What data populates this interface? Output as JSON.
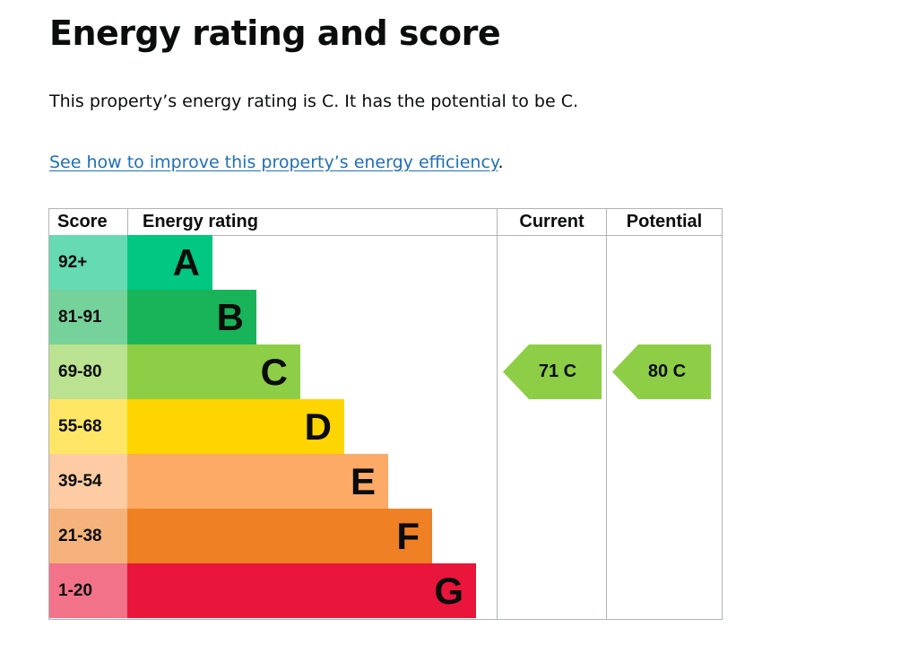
{
  "page": {
    "title": "Energy rating and score",
    "summary": "This property’s energy rating is C. It has the potential to be C.",
    "link_text": "See how to improve this property’s energy efficiency",
    "link_suffix": "."
  },
  "table": {
    "headers": {
      "score": "Score",
      "rating": "Energy rating",
      "current": "Current",
      "potential": "Potential"
    },
    "bands": [
      {
        "letter": "A",
        "range": "92+",
        "bar_color": "#00c781",
        "score_bg": "#66dab3"
      },
      {
        "letter": "B",
        "range": "81-91",
        "bar_color": "#19b459",
        "score_bg": "#75d29b"
      },
      {
        "letter": "C",
        "range": "69-80",
        "bar_color": "#8dce46",
        "score_bg": "#bbe290"
      },
      {
        "letter": "D",
        "range": "55-68",
        "bar_color": "#ffd500",
        "score_bg": "#ffe666"
      },
      {
        "letter": "E",
        "range": "39-54",
        "bar_color": "#fcaa65",
        "score_bg": "#fdcca3"
      },
      {
        "letter": "F",
        "range": "21-38",
        "bar_color": "#ef8023",
        "score_bg": "#f5b37b"
      },
      {
        "letter": "G",
        "range": "1-20",
        "bar_color": "#e9153b",
        "score_bg": "#f27389"
      }
    ],
    "current": {
      "label": "71 C",
      "score": 71,
      "band": "C",
      "color": "#8dce46"
    },
    "potential": {
      "label": "80 C",
      "score": 80,
      "band": "C",
      "color": "#8dce46"
    }
  }
}
